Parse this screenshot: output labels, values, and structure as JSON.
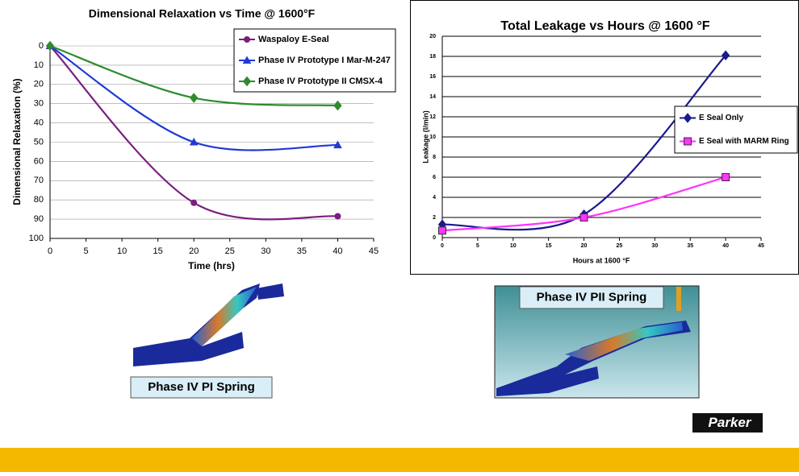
{
  "chart_data": [
    {
      "type": "line",
      "title": "Dimensional Relaxation vs Time @ 1600°F",
      "x_label": "Time (hrs)",
      "y_label": "Dimensional Relaxation (%)",
      "x": [
        0,
        20,
        40
      ],
      "series": [
        {
          "name": "Waspaloy E-Seal",
          "color": "#7a1f7f",
          "marker": "circle",
          "values": [
            0,
            81.5,
            88.5
          ]
        },
        {
          "name": "Phase IV Prototype I Mar-M-247",
          "color": "#1f3ad6",
          "marker": "triangle",
          "values": [
            0,
            50,
            51.5
          ]
        },
        {
          "name": "Phase IV Prototype II CMSX-4",
          "color": "#2e8b2e",
          "marker": "diamond",
          "values": [
            0,
            27,
            31
          ]
        }
      ],
      "xlim": [
        0,
        45
      ],
      "xticks": [
        0,
        5,
        10,
        15,
        20,
        25,
        30,
        35,
        40,
        45
      ],
      "ylim": [
        0,
        100
      ],
      "yticks": [
        0,
        10,
        20,
        30,
        40,
        50,
        60,
        70,
        80,
        90,
        100
      ],
      "y_reversed": true,
      "grid": true,
      "smooth": true,
      "legend": "upper right"
    },
    {
      "type": "line",
      "title": "Total Leakage vs Hours @ 1600 °F",
      "x_label": "Hours at 1600 °F",
      "y_label": "Leakage (l/min)",
      "x": [
        0,
        20,
        40
      ],
      "series": [
        {
          "name": "E Seal Only",
          "color": "#1a1a8c",
          "marker": "diamond",
          "values": [
            1.3,
            2.3,
            18.1
          ]
        },
        {
          "name": "E Seal with MARM Ring",
          "color": "#ff33ff",
          "marker": "square",
          "values": [
            0.7,
            2.0,
            6.0
          ]
        }
      ],
      "xlim": [
        0,
        45
      ],
      "xticks": [
        0,
        5,
        10,
        15,
        20,
        25,
        30,
        35,
        40,
        45
      ],
      "ylim": [
        0,
        20
      ],
      "yticks": [
        0,
        2,
        4,
        6,
        8,
        10,
        12,
        14,
        16,
        18,
        20
      ],
      "y_reversed": false,
      "grid": true,
      "smooth": true,
      "legend": "right"
    }
  ],
  "captions": [
    "Phase IV PI Spring",
    "Phase IV PII Spring"
  ],
  "logo": "Parker"
}
